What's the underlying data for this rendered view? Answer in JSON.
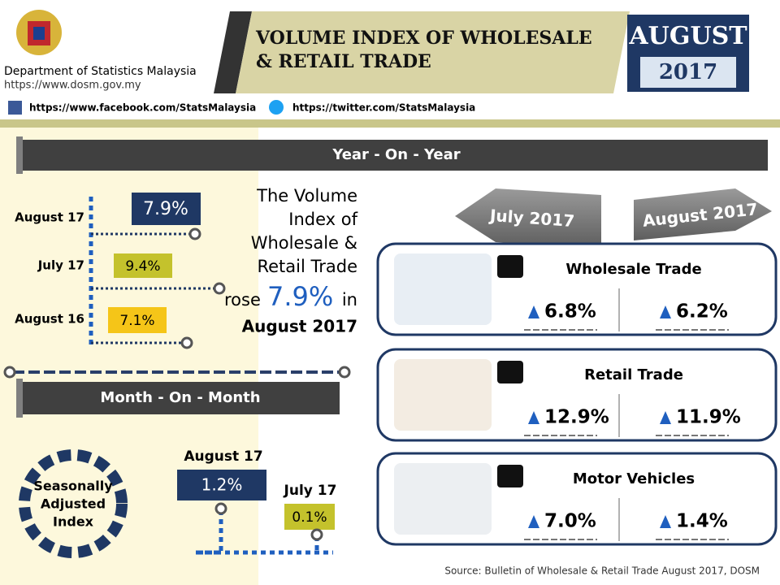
{
  "header": {
    "org": "Department of Statistics Malaysia",
    "url": "https://www.dosm.gov.my",
    "facebook": "https://www.facebook.com/StatsMalaysia",
    "twitter": "https://twitter.com/StatsMalaysia",
    "title_lines": [
      "VOLUME INDEX OF WHOLESALE",
      "& RETAIL TRADE"
    ],
    "month": "AUGUST",
    "year": "2017"
  },
  "yoy": {
    "heading": "Year - On - Year",
    "items": [
      {
        "label": "August 17",
        "value": "7.9%"
      },
      {
        "label": "July 17",
        "value": "9.4%"
      },
      {
        "label": "August 16",
        "value": "7.1%"
      }
    ],
    "summary": {
      "lines": [
        "The Volume",
        "Index of",
        "Wholesale &",
        "Retail Trade"
      ],
      "rose": "rose",
      "value": "7.9%",
      "in": "in",
      "period": "August 2017"
    }
  },
  "mom": {
    "heading": "Month - On - Month",
    "badge": [
      "Seasonally",
      "Adjusted",
      "Index"
    ],
    "items": [
      {
        "label": "August 17",
        "value": "1.2%"
      },
      {
        "label": "July 17",
        "value": "0.1%"
      }
    ]
  },
  "sectors": {
    "col1": "July 2017",
    "col2": "August 2017",
    "rows": [
      {
        "name": "Wholesale Trade",
        "jul": "6.8%",
        "aug": "6.2%"
      },
      {
        "name": "Retail Trade",
        "jul": "12.9%",
        "aug": "11.9%"
      },
      {
        "name": "Motor Vehicles",
        "jul": "7.0%",
        "aug": "1.4%"
      }
    ]
  },
  "source": "Source: Bulletin of Wholesale & Retail Trade August 2017, DOSM"
}
